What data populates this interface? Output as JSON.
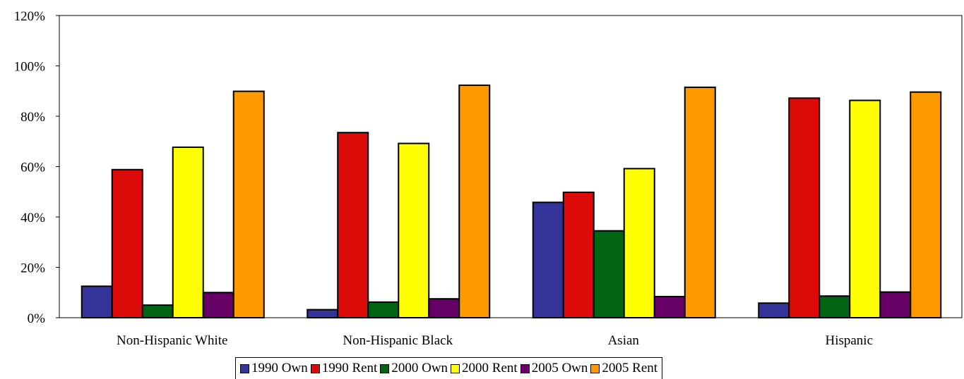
{
  "chart_data": {
    "type": "bar",
    "title": "",
    "xlabel": "",
    "ylabel": "",
    "ylim": [
      0,
      120
    ],
    "y_ticks": [
      "0%",
      "20%",
      "40%",
      "60%",
      "80%",
      "100%",
      "120%"
    ],
    "y_tick_values": [
      0,
      20,
      40,
      60,
      80,
      100,
      120
    ],
    "grid": false,
    "legend_position": "bottom",
    "categories": [
      "Non-Hispanic White",
      "Non-Hispanic Black",
      "Asian",
      "Hispanic"
    ],
    "series": [
      {
        "name": "1990 Own",
        "color": "#333399",
        "values": [
          12.5,
          3.2,
          45.8,
          5.8
        ]
      },
      {
        "name": "1990 Rent",
        "color": "#dd0a0a",
        "values": [
          58.8,
          73.5,
          49.8,
          87.2
        ]
      },
      {
        "name": "2000 Own",
        "color": "#006414",
        "values": [
          5.0,
          6.2,
          34.5,
          8.6
        ]
      },
      {
        "name": "2000 Rent",
        "color": "#ffff00",
        "values": [
          67.7,
          69.2,
          59.2,
          86.3
        ]
      },
      {
        "name": "2005 Own",
        "color": "#660066",
        "values": [
          10.0,
          7.5,
          8.4,
          10.2
        ]
      },
      {
        "name": "2005 Rent",
        "color": "#ff9900",
        "values": [
          89.9,
          92.3,
          91.5,
          89.6
        ]
      }
    ]
  }
}
